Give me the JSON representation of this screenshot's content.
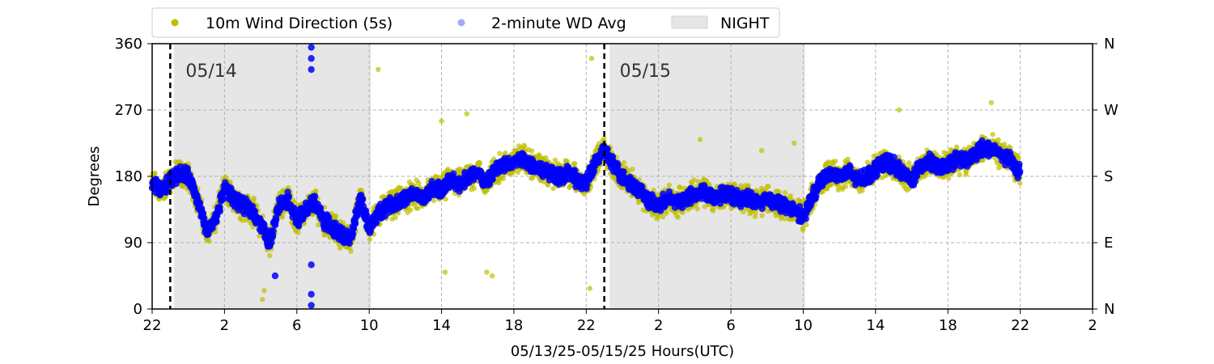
{
  "chart_data": {
    "type": "scatter",
    "xlabel": "05/13/25-05/15/25  Hours(UTC)",
    "ylabel": "Degrees",
    "ylim": [
      0,
      360
    ],
    "x_range_hours": [
      22,
      74
    ],
    "x_ticks": [
      {
        "hour": 22,
        "label": "22"
      },
      {
        "hour": 26,
        "label": "2"
      },
      {
        "hour": 30,
        "label": "6"
      },
      {
        "hour": 34,
        "label": "10"
      },
      {
        "hour": 38,
        "label": "14"
      },
      {
        "hour": 42,
        "label": "18"
      },
      {
        "hour": 46,
        "label": "22"
      },
      {
        "hour": 50,
        "label": "2"
      },
      {
        "hour": 54,
        "label": "6"
      },
      {
        "hour": 58,
        "label": "10"
      },
      {
        "hour": 62,
        "label": "14"
      },
      {
        "hour": 66,
        "label": "18"
      },
      {
        "hour": 70,
        "label": "22"
      },
      {
        "hour": 74,
        "label": "2"
      }
    ],
    "y_ticks": [
      0,
      90,
      180,
      270,
      360
    ],
    "right_ticks": [
      {
        "value": 0,
        "label": "N"
      },
      {
        "value": 90,
        "label": "E"
      },
      {
        "value": 180,
        "label": "S"
      },
      {
        "value": 270,
        "label": "W"
      },
      {
        "value": 360,
        "label": "N"
      }
    ],
    "grid": true,
    "legend": {
      "placement": "top-center",
      "entries": [
        {
          "label": "10m Wind Direction (5s)",
          "color": "#bfbf00"
        },
        {
          "label": "2-minute WD Avg",
          "color": "#0000ff"
        },
        {
          "label": "NIGHT",
          "color": "#e6e6e6"
        }
      ]
    },
    "night_spans": [
      [
        23.2,
        34.1
      ],
      [
        47.3,
        58.1
      ]
    ],
    "day_dividers": [
      {
        "hour": 23.0,
        "label": "05/14"
      },
      {
        "hour": 47.0,
        "label": "05/15"
      }
    ],
    "series": [
      {
        "name": "10m Wind Direction (5s)",
        "color": "#bfbf00",
        "spread": 22,
        "x": [
          22.0,
          22.5,
          23.0,
          23.5,
          24.0,
          24.5,
          25.0,
          25.5,
          26.0,
          26.5,
          27.0,
          27.5,
          28.0,
          28.5,
          29.0,
          29.5,
          30.0,
          30.5,
          31.0,
          31.5,
          32.0,
          32.5,
          33.0,
          33.5,
          34.0,
          34.5,
          35.0,
          35.5,
          36.0,
          36.5,
          37.0,
          37.5,
          38.0,
          38.5,
          39.0,
          39.5,
          40.0,
          40.5,
          41.0,
          41.5,
          42.0,
          42.5,
          43.0,
          43.5,
          44.0,
          44.5,
          45.0,
          45.5,
          46.0,
          46.5,
          47.0,
          47.5,
          48.0,
          48.5,
          49.0,
          49.5,
          50.0,
          50.5,
          51.0,
          51.5,
          52.0,
          52.5,
          53.0,
          53.5,
          54.0,
          54.5,
          55.0,
          55.5,
          56.0,
          56.5,
          57.0,
          57.5,
          58.0,
          58.5,
          59.0,
          59.5,
          60.0,
          60.5,
          61.0,
          61.5,
          62.0,
          62.5,
          63.0,
          63.5,
          64.0,
          64.5,
          65.0,
          65.5,
          66.0,
          66.5,
          67.0,
          67.5,
          68.0,
          68.5,
          69.0,
          69.5,
          70.0
        ],
        "y": [
          170,
          160,
          175,
          185,
          180,
          150,
          105,
          120,
          165,
          150,
          140,
          135,
          115,
          90,
          140,
          150,
          120,
          135,
          145,
          120,
          110,
          100,
          95,
          150,
          110,
          130,
          140,
          145,
          150,
          155,
          150,
          165,
          160,
          175,
          170,
          180,
          185,
          170,
          190,
          195,
          200,
          205,
          195,
          190,
          185,
          180,
          185,
          175,
          170,
          200,
          215,
          195,
          180,
          170,
          160,
          145,
          140,
          150,
          145,
          150,
          155,
          160,
          150,
          155,
          155,
          150,
          150,
          145,
          150,
          145,
          140,
          135,
          125,
          150,
          175,
          185,
          180,
          185,
          175,
          180,
          190,
          200,
          195,
          185,
          175,
          195,
          200,
          190,
          195,
          205,
          200,
          210,
          220,
          215,
          210,
          200,
          185
        ]
      },
      {
        "name": "2-minute WD Avg",
        "color": "#0000ff",
        "spread": 12,
        "x": [
          22.0,
          22.5,
          23.0,
          23.5,
          24.0,
          24.5,
          25.0,
          25.5,
          26.0,
          26.5,
          27.0,
          27.5,
          28.0,
          28.5,
          29.0,
          29.5,
          30.0,
          30.5,
          31.0,
          31.5,
          32.0,
          32.5,
          33.0,
          33.5,
          34.0,
          34.5,
          35.0,
          35.5,
          36.0,
          36.5,
          37.0,
          37.5,
          38.0,
          38.5,
          39.0,
          39.5,
          40.0,
          40.5,
          41.0,
          41.5,
          42.0,
          42.5,
          43.0,
          43.5,
          44.0,
          44.5,
          45.0,
          45.5,
          46.0,
          46.5,
          47.0,
          47.5,
          48.0,
          48.5,
          49.0,
          49.5,
          50.0,
          50.5,
          51.0,
          51.5,
          52.0,
          52.5,
          53.0,
          53.5,
          54.0,
          54.5,
          55.0,
          55.5,
          56.0,
          56.5,
          57.0,
          57.5,
          58.0,
          58.5,
          59.0,
          59.5,
          60.0,
          60.5,
          61.0,
          61.5,
          62.0,
          62.5,
          63.0,
          63.5,
          64.0,
          64.5,
          65.0,
          65.5,
          66.0,
          66.5,
          67.0,
          67.5,
          68.0,
          68.5,
          69.0,
          69.5,
          70.0
        ],
        "y": [
          170,
          160,
          175,
          185,
          180,
          150,
          105,
          120,
          165,
          150,
          140,
          135,
          115,
          90,
          140,
          150,
          120,
          135,
          145,
          120,
          110,
          100,
          95,
          150,
          110,
          130,
          140,
          145,
          150,
          155,
          150,
          165,
          160,
          175,
          170,
          180,
          185,
          170,
          190,
          195,
          200,
          205,
          195,
          190,
          185,
          180,
          185,
          175,
          170,
          200,
          215,
          195,
          180,
          170,
          160,
          145,
          140,
          150,
          145,
          150,
          155,
          160,
          150,
          155,
          155,
          150,
          150,
          145,
          150,
          145,
          140,
          135,
          125,
          150,
          175,
          185,
          180,
          185,
          175,
          180,
          190,
          200,
          195,
          185,
          175,
          195,
          200,
          190,
          195,
          205,
          200,
          210,
          220,
          215,
          210,
          200,
          185
        ]
      }
    ],
    "extra_points": [
      {
        "series": "2-minute WD Avg",
        "x": 30.8,
        "y": 355
      },
      {
        "series": "2-minute WD Avg",
        "x": 30.8,
        "y": 340
      },
      {
        "series": "2-minute WD Avg",
        "x": 30.8,
        "y": 325
      },
      {
        "series": "2-minute WD Avg",
        "x": 30.8,
        "y": 60
      },
      {
        "series": "2-minute WD Avg",
        "x": 30.8,
        "y": 20
      },
      {
        "series": "2-minute WD Avg",
        "x": 30.8,
        "y": 5
      },
      {
        "series": "2-minute WD Avg",
        "x": 28.8,
        "y": 45
      },
      {
        "series": "10m Wind Direction (5s)",
        "x": 28.2,
        "y": 25
      },
      {
        "series": "10m Wind Direction (5s)",
        "x": 28.1,
        "y": 13
      },
      {
        "series": "10m Wind Direction (5s)",
        "x": 46.3,
        "y": 340
      },
      {
        "series": "10m Wind Direction (5s)",
        "x": 46.2,
        "y": 28
      },
      {
        "series": "10m Wind Direction (5s)",
        "x": 38.2,
        "y": 50
      },
      {
        "series": "10m Wind Direction (5s)",
        "x": 40.5,
        "y": 50
      },
      {
        "series": "10m Wind Direction (5s)",
        "x": 40.8,
        "y": 45
      },
      {
        "series": "10m Wind Direction (5s)",
        "x": 39.4,
        "y": 265
      },
      {
        "series": "10m Wind Direction (5s)",
        "x": 38.0,
        "y": 255
      },
      {
        "series": "10m Wind Direction (5s)",
        "x": 63.3,
        "y": 270
      },
      {
        "series": "10m Wind Direction (5s)",
        "x": 68.4,
        "y": 280
      },
      {
        "series": "10m Wind Direction (5s)",
        "x": 34.5,
        "y": 325
      },
      {
        "series": "10m Wind Direction (5s)",
        "x": 52.3,
        "y": 230
      },
      {
        "series": "10m Wind Direction (5s)",
        "x": 55.7,
        "y": 215
      },
      {
        "series": "10m Wind Direction (5s)",
        "x": 57.5,
        "y": 225
      }
    ]
  }
}
